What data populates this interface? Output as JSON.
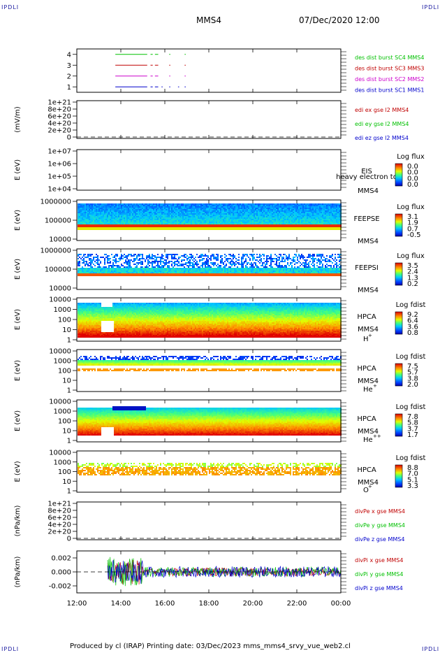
{
  "header": {
    "corner_tl": "IPDLI",
    "corner_tr": "IPDLI",
    "corner_bl": "IPDLI",
    "corner_br": "IPDLI",
    "title": "MMS4",
    "date": "07/Dec/2020 12:00"
  },
  "footer": "Produced by cl (IRAP)    Printing date: 03/Dec/2023    mms_mms4_srvy_vue_web2.cl",
  "colors": {
    "red": "#c00000",
    "magenta": "#cc00cc",
    "green": "#00c000",
    "blue": "#0000cc"
  },
  "chart_data": [
    {
      "type": "line",
      "panel": "burst",
      "y_ticks": [
        "1",
        "2",
        "3",
        "4"
      ],
      "ylim": [
        0.5,
        4.5
      ],
      "series": [
        {
          "name": "des dist burst SC1 MMS1",
          "color": "#0000cc",
          "level": 1,
          "segments": [
            [
              13.75,
              15.2
            ],
            [
              15.35,
              15.45
            ],
            [
              15.55,
              15.7
            ],
            [
              15.85,
              15.9
            ],
            [
              16.2,
              16.25
            ],
            [
              16.6,
              16.65
            ],
            [
              16.9,
              16.95
            ]
          ]
        },
        {
          "name": "des dist burst SC2 MMS2",
          "color": "#cc00cc",
          "level": 2,
          "segments": [
            [
              13.75,
              15.2
            ],
            [
              15.35,
              15.45
            ],
            [
              15.55,
              15.7
            ],
            [
              16.2,
              16.25
            ],
            [
              16.9,
              16.95
            ]
          ]
        },
        {
          "name": "des dist burst SC3 MMS3",
          "color": "#c00000",
          "level": 3,
          "segments": [
            [
              13.75,
              15.2
            ],
            [
              15.35,
              15.45
            ],
            [
              15.55,
              15.7
            ],
            [
              16.2,
              16.25
            ],
            [
              16.9,
              16.95
            ]
          ]
        },
        {
          "name": "des dist burst SC4 MMS4",
          "color": "#00c000",
          "level": 4,
          "segments": [
            [
              13.75,
              15.2
            ],
            [
              15.35,
              15.45
            ],
            [
              15.55,
              15.7
            ],
            [
              16.2,
              16.25
            ],
            [
              16.9,
              16.95
            ]
          ]
        }
      ]
    },
    {
      "type": "line",
      "panel": "edi",
      "ylabel": "(mV/m)",
      "y_ticks": [
        "0",
        "2e+20",
        "4e+20",
        "6e+20",
        "8e+20",
        "1e+21"
      ],
      "series": [
        {
          "name": "edi ex gse l2 MMS4",
          "color": "#c00000"
        },
        {
          "name": "edi ey gse l2 MMS4",
          "color": "#00c000"
        },
        {
          "name": "edi ez gse l2 MMS4",
          "color": "#0000cc"
        }
      ],
      "zero_line": true
    },
    {
      "type": "heatmap",
      "panel": "eis",
      "ylabel": "E (eV)",
      "y_ticks": [
        "1e+04",
        "1e+05",
        "1e+06",
        "1e+07"
      ],
      "label_top": "EIS",
      "label_mid": "heavy electron to",
      "label_bottom": "MMS4",
      "colorbar_title": "Log flux",
      "colorbar_ticks": [
        "0.0",
        "0.0",
        "0.0",
        "0.0"
      ],
      "empty": true
    },
    {
      "type": "heatmap",
      "panel": "feepse",
      "ylabel": "E (eV)",
      "y_ticks": [
        "10000",
        "100000",
        "1000000"
      ],
      "label_top": "FEEPSE",
      "label_bottom": "MMS4",
      "colorbar_title": "Log flux",
      "colorbar_ticks": [
        "3.1",
        "1.9",
        "0.7",
        "-0.5"
      ]
    },
    {
      "type": "heatmap",
      "panel": "feepsi",
      "ylabel": "E (eV)",
      "y_ticks": [
        "10000",
        "100000",
        "1000000"
      ],
      "label_top": "FEEPSI",
      "label_bottom": "MMS4",
      "colorbar_title": "Log flux",
      "colorbar_ticks": [
        "3.5",
        "2.4",
        "1.3",
        "0.2"
      ]
    },
    {
      "type": "heatmap",
      "panel": "hpca_h",
      "ylabel": "E (eV)",
      "y_ticks": [
        "1",
        "10",
        "100",
        "1000",
        "10000"
      ],
      "label_top": "HPCA",
      "label_mid": "MMS4",
      "species": "H",
      "charge": "+",
      "colorbar_title": "Log fdist",
      "colorbar_ticks": [
        "9.2",
        "6.4",
        "3.6",
        "0.8"
      ]
    },
    {
      "type": "heatmap",
      "panel": "hpca_he",
      "ylabel": "E (eV)",
      "y_ticks": [
        "1",
        "10",
        "100",
        "1000",
        "10000"
      ],
      "label_top": "HPCA",
      "label_mid": "MMS4",
      "species": "He",
      "charge": "+",
      "colorbar_title": "Log fdist",
      "colorbar_ticks": [
        "7.5",
        "5.7",
        "3.8",
        "2.0"
      ]
    },
    {
      "type": "heatmap",
      "panel": "hpca_he2",
      "ylabel": "E (eV)",
      "y_ticks": [
        "1",
        "10",
        "100",
        "1000",
        "10000"
      ],
      "label_top": "HPCA",
      "label_mid": "MMS4",
      "species": "He",
      "charge": "++",
      "colorbar_title": "Log fdist",
      "colorbar_ticks": [
        "7.8",
        "5.8",
        "3.7",
        "1.7"
      ]
    },
    {
      "type": "heatmap",
      "panel": "hpca_o",
      "ylabel": "E (eV)",
      "y_ticks": [
        "1",
        "10",
        "100",
        "1000",
        "10000"
      ],
      "label_top": "HPCA",
      "label_mid": "MMS4",
      "species": "O",
      "charge": "+",
      "colorbar_title": "Log fdist",
      "colorbar_ticks": [
        "8.8",
        "7.0",
        "5.1",
        "3.3"
      ]
    },
    {
      "type": "line",
      "panel": "divpe",
      "ylabel": "(nPa/km)",
      "y_ticks": [
        "0",
        "2e+20",
        "4e+20",
        "6e+20",
        "8e+20",
        "1e+21"
      ],
      "series": [
        {
          "name": "divPe x gse MMS4",
          "color": "#c00000"
        },
        {
          "name": "divPe y gse MMS4",
          "color": "#00c000"
        },
        {
          "name": "divPe z gse MMS4",
          "color": "#0000cc"
        }
      ],
      "zero_line": true
    },
    {
      "type": "line",
      "panel": "divpi",
      "ylabel": "(nPa/km)",
      "y_ticks": [
        "-0.002",
        "0.000",
        "0.002"
      ],
      "ylim": [
        -0.003,
        0.003
      ],
      "series": [
        {
          "name": "divPi x gse MMS4",
          "color": "#c00000",
          "start": 13.4,
          "amp_early": 0.0018,
          "amp_late": 0.0006
        },
        {
          "name": "divPi y gse MMS4",
          "color": "#00c000",
          "start": 13.4,
          "amp_early": 0.0022,
          "amp_late": 0.0007
        },
        {
          "name": "divPi z gse MMS4",
          "color": "#0000cc",
          "start": 13.4,
          "amp_early": 0.0017,
          "amp_late": 0.0008
        }
      ],
      "zero_line": true
    }
  ],
  "x_axis": {
    "xlim": [
      12,
      24
    ],
    "ticks": [
      12,
      14,
      16,
      18,
      20,
      22,
      24
    ],
    "tick_labels": [
      "12:00",
      "14:00",
      "16:00",
      "18:00",
      "20:00",
      "22:00",
      "00:00"
    ]
  }
}
